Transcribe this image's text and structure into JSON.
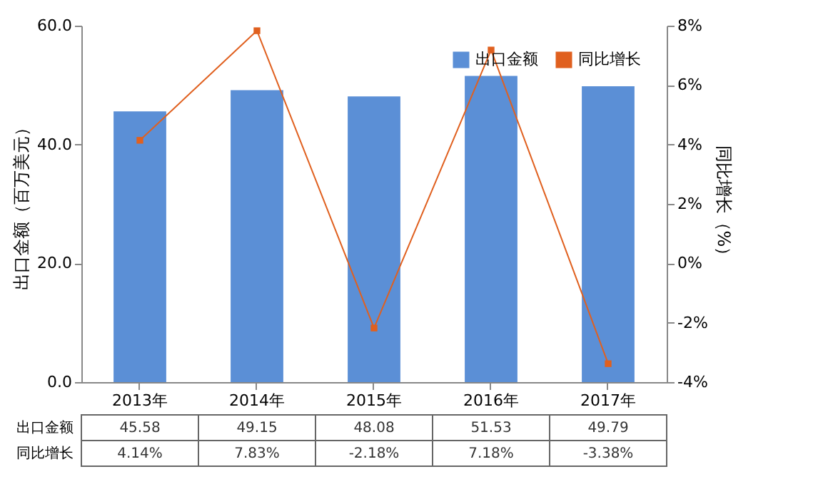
{
  "chart_data": {
    "type": "bar",
    "categories": [
      "2013年",
      "2014年",
      "2015年",
      "2016年",
      "2017年"
    ],
    "ylabel": "出口金额（百万美元）",
    "y2label": "同比增长（%）",
    "ylim": [
      0,
      60
    ],
    "yticks": [
      {
        "value": 0,
        "label": "0.0"
      },
      {
        "value": 20,
        "label": "20.0"
      },
      {
        "value": 40,
        "label": "40.0"
      },
      {
        "value": 60,
        "label": "60.0"
      }
    ],
    "y2lim": [
      -4,
      8
    ],
    "y2ticks": [
      {
        "value": -4,
        "label": "-4%"
      },
      {
        "value": -2,
        "label": "-2%"
      },
      {
        "value": 0,
        "label": "0%"
      },
      {
        "value": 2,
        "label": "2%"
      },
      {
        "value": 4,
        "label": "4%"
      },
      {
        "value": 6,
        "label": "6%"
      },
      {
        "value": 8,
        "label": "8%"
      }
    ],
    "legend": "top right",
    "marker": "square",
    "series": [
      {
        "name": "出口金额",
        "color": "#5b8fd6",
        "values": [
          45.58,
          49.15,
          48.08,
          51.53,
          49.79
        ],
        "value_labels": [
          "45.58",
          "49.15",
          "48.08",
          "51.53",
          "49.79"
        ]
      },
      {
        "name": "同比增长",
        "type": "line",
        "axis": "y2",
        "color": "#e0601f",
        "values": [
          4.14,
          7.83,
          -2.18,
          7.18,
          -3.38
        ],
        "value_labels": [
          "4.14%",
          "7.83%",
          "-2.18%",
          "7.18%",
          "-3.38%"
        ]
      }
    ]
  }
}
